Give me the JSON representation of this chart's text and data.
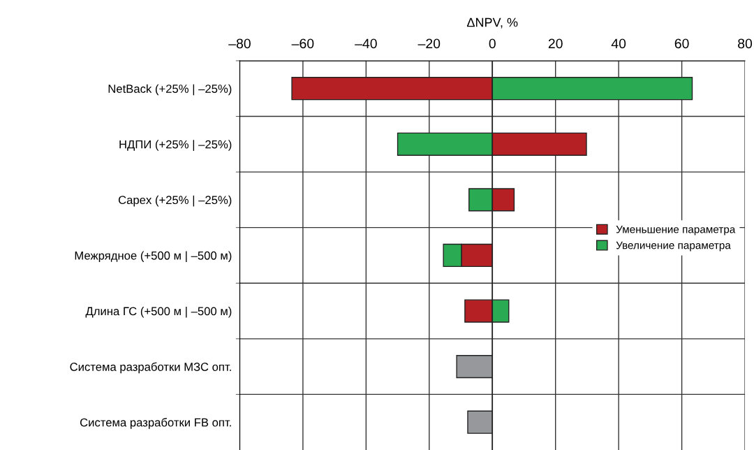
{
  "chart_data": {
    "type": "bar",
    "orientation": "horizontal",
    "stacked": true,
    "xlabel": "ΔNPV, %",
    "categories": [
      "NetBack (+25% | –25%)",
      "НДПИ (+25% | –25%)",
      "Capex (+25% | –25%)",
      "Межрядное (+500 м | –500 м)",
      "Длина ГС (+500 м | –500 м)",
      "Система разработки МЗС опт.",
      "Система разработки FB опт."
    ],
    "series": [
      {
        "name": "Уменьшение параметра",
        "color": "#b52025",
        "values": [
          -63.5,
          29.8,
          6.9,
          -9.8,
          -8.7,
          null,
          null
        ]
      },
      {
        "name": "Увеличение параметра",
        "color": "#2aaa52",
        "values": [
          63.3,
          -30.0,
          -7.4,
          -5.7,
          5.2,
          null,
          null
        ]
      },
      {
        "color": "#97989c",
        "values": [
          null,
          null,
          null,
          null,
          null,
          -11.3,
          -7.8
        ]
      }
    ],
    "xlim": [
      -80,
      80
    ],
    "xticks": [
      {
        "value": -80,
        "label": "–80"
      },
      {
        "value": -60,
        "label": "–60"
      },
      {
        "value": -40,
        "label": "–40"
      },
      {
        "value": -20,
        "label": "–20"
      },
      0,
      20,
      40,
      60,
      80
    ],
    "grid": true,
    "legend": "right"
  }
}
